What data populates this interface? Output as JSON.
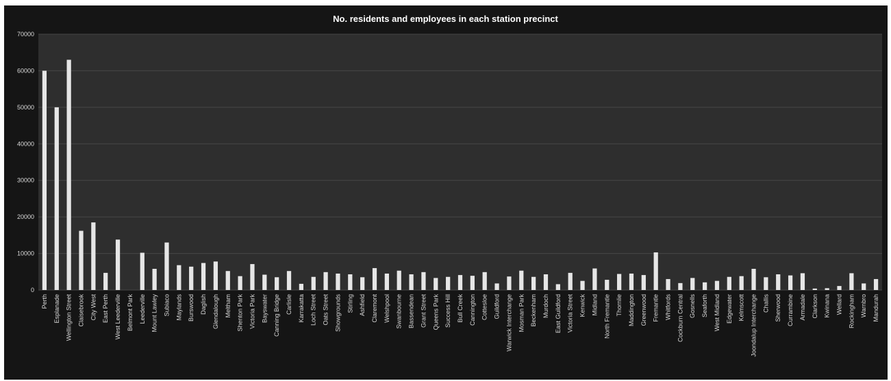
{
  "chart_data": {
    "type": "bar",
    "title": "No. residents and employees in each station precinct",
    "xlabel": "",
    "ylabel": "",
    "ylim": [
      0,
      70000
    ],
    "yticks": [
      0,
      10000,
      20000,
      30000,
      40000,
      50000,
      60000,
      70000
    ],
    "grid": true,
    "legend": "none",
    "colors": {
      "background": "#151515",
      "plot": "#2e2e2e",
      "bar": "#e6e6e6",
      "text": "#d8d8d8",
      "grid": "#474747"
    },
    "categories": [
      "Perth",
      "Esplanade",
      "Wellington Street",
      "Claisebrook",
      "City West",
      "East Perth",
      "West Leederville",
      "Belmont Park",
      "Leederville",
      "Mount Lawley",
      "Subiaco",
      "Maylands",
      "Burswood",
      "Daglish",
      "Glendalough",
      "Meltham",
      "Shenton Park",
      "Victoria Park",
      "Bayswater",
      "Canning Bridge",
      "Carlisle",
      "Karrakatta",
      "Loch Street",
      "Oats Street",
      "Showgrounds",
      "Stirling",
      "Ashfield",
      "Claremont",
      "Welshpool",
      "Swanbourne",
      "Bassendean",
      "Grant Street",
      "Queens Park",
      "Success Hill",
      "Bull Creek",
      "Cannington",
      "Cottesloe",
      "Guildford",
      "Warwick Interchange",
      "Mosman Park",
      "Beckenham",
      "Murdoch",
      "East Guildford",
      "Victoria Street",
      "Kenwick",
      "Midland",
      "North Fremantle",
      "Thornlie",
      "Maddington",
      "Greenwood",
      "Fremantle",
      "Whitfords",
      "Cockburn Central",
      "Gosnells",
      "Seaforth",
      "West Midland",
      "Edgewater",
      "Kelmscott",
      "Joondalup Interchange",
      "Challis",
      "Sherwood",
      "Currambine",
      "Armadale",
      "Clarkson",
      "Kwinana",
      "Wellard",
      "Rockingham",
      "Warnbro",
      "Mandurah"
    ],
    "values": [
      60000,
      50000,
      63000,
      16200,
      18500,
      4700,
      13800,
      0,
      10200,
      5800,
      13000,
      6800,
      6400,
      7400,
      7800,
      5200,
      3800,
      7100,
      4200,
      3500,
      5200,
      1700,
      3600,
      4900,
      4500,
      4300,
      3500,
      6000,
      4500,
      5300,
      4300,
      4900,
      3300,
      3600,
      4100,
      3900,
      4900,
      1800,
      3700,
      5300,
      3600,
      4300,
      1600,
      4700,
      2500,
      5900,
      2800,
      4400,
      4500,
      4100,
      10300,
      3000,
      1900,
      3300,
      2100,
      2500,
      3600,
      3800,
      5800,
      3500,
      4300,
      4000,
      4600,
      400,
      500,
      1100,
      4600,
      1800,
      3000
    ]
  }
}
